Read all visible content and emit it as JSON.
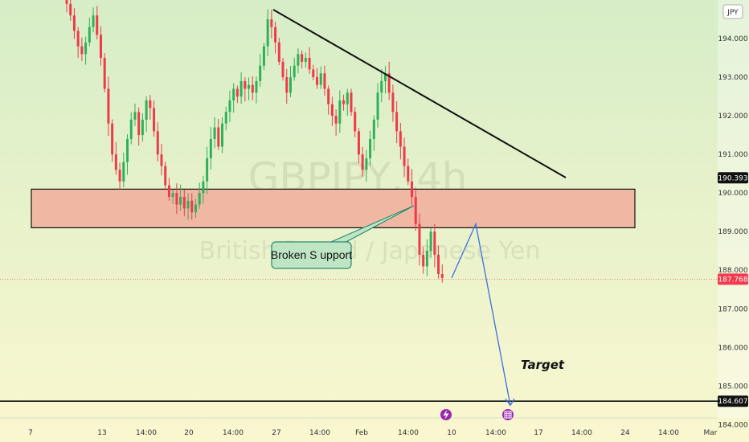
{
  "currency_label": "JPY",
  "watermark": {
    "symbol": "GBPJPY, 4h",
    "name": "British Pound / Japanese Yen"
  },
  "annotations": {
    "callout": "Broken S upport",
    "target": "Target"
  },
  "colors": {
    "bg_top": "#d6edc7",
    "bg_bottom": "#faf7cf",
    "bull": "#2fb05a",
    "bear": "#ee3a4a",
    "zone_fill": "#f0b8a3",
    "callout_fill": "#bfe6c4",
    "callout_border": "#2d8a70",
    "projection": "#3b6fe0",
    "current_price_bg": "#f2394e",
    "level_price_bg": "#111111",
    "event_badge": "#9b27b0"
  },
  "icons": [
    "lightning-icon",
    "flag-icon"
  ],
  "chart_data": {
    "type": "candlestick",
    "symbol": "GBPJPY",
    "timeframe": "4h",
    "y_ticks": [
      "184.000",
      "185.000",
      "186.000",
      "187.000",
      "188.000",
      "189.000",
      "190.000",
      "191.000",
      "192.000",
      "193.000",
      "194.000"
    ],
    "x_ticks": [
      "7",
      "13",
      "14:00",
      "20",
      "14:00",
      "27",
      "14:00",
      "Feb",
      "14:00",
      "10",
      "14:00",
      "17",
      "14:00",
      "24",
      "14:00",
      "Mar"
    ],
    "ylim": [
      183.55,
      195.0
    ],
    "grid": false,
    "price_labels": {
      "resistance_mark": "190.393",
      "current": "187.768",
      "target_level": "184.607"
    },
    "levels": {
      "support_zone": [
        189.1,
        190.1
      ],
      "target_line": 184.607,
      "current_price": 187.768
    },
    "trendline": {
      "from": 194.75,
      "to": 190.4
    },
    "projection_path": [
      187.8,
      189.2,
      184.5
    ],
    "closes": [
      195.2,
      194.9,
      194.6,
      194.2,
      193.8,
      193.6,
      193.9,
      194.3,
      194.6,
      194.1,
      193.5,
      192.7,
      191.8,
      191.0,
      190.6,
      190.3,
      190.8,
      191.4,
      191.9,
      192.1,
      191.5,
      191.9,
      192.4,
      192.2,
      191.6,
      191.0,
      190.7,
      190.2,
      189.9,
      190.0,
      189.7,
      189.9,
      189.6,
      189.8,
      189.5,
      189.7,
      190.0,
      190.3,
      190.9,
      191.4,
      191.7,
      191.2,
      191.8,
      192.1,
      192.4,
      192.7,
      192.5,
      192.9,
      192.7,
      192.8,
      192.6,
      192.9,
      193.3,
      193.8,
      194.5,
      194.3,
      193.9,
      193.4,
      193.0,
      192.6,
      193.0,
      193.3,
      193.6,
      193.4,
      193.5,
      193.2,
      193.0,
      192.8,
      193.1,
      192.7,
      192.3,
      192.0,
      191.8,
      192.4,
      192.3,
      192.6,
      192.1,
      191.6,
      191.0,
      190.6,
      190.9,
      191.4,
      191.9,
      192.6,
      192.9,
      193.1,
      192.6,
      192.1,
      191.6,
      191.2,
      190.7,
      190.3,
      189.9,
      189.2,
      188.4,
      188.1,
      188.5,
      189.0,
      188.4,
      187.9,
      187.8
    ]
  }
}
